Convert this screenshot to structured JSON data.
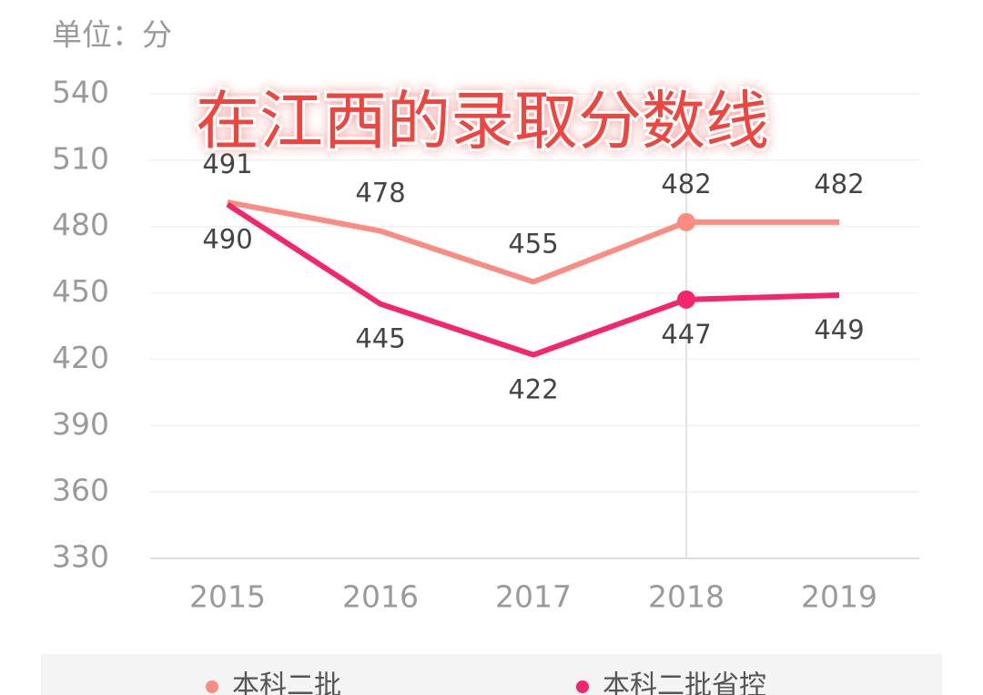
{
  "chart_data": {
    "type": "line",
    "ylabel": "单位：分",
    "annotation": "在江西的录取分数线",
    "categories": [
      "2015",
      "2016",
      "2017",
      "2018",
      "2019"
    ],
    "series": [
      {
        "name": "本科二批",
        "color": "#fb8c82",
        "values": [
          491,
          478,
          455,
          482,
          482
        ]
      },
      {
        "name": "本科二批省控",
        "color": "#f5256c",
        "values": [
          490,
          445,
          422,
          447,
          449
        ]
      }
    ],
    "ylim": [
      330,
      540
    ],
    "yticks": [
      330,
      360,
      390,
      420,
      450,
      480,
      510,
      540
    ],
    "grid": true
  }
}
